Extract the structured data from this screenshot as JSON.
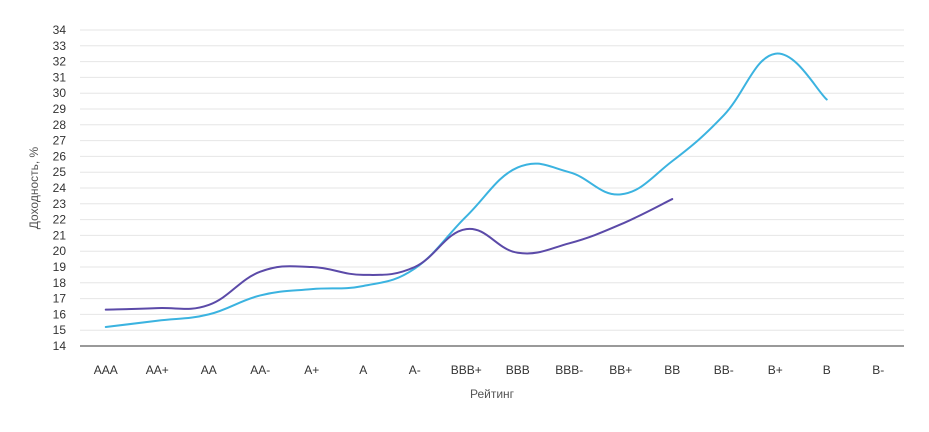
{
  "chart_data": {
    "type": "line",
    "title": "",
    "xlabel": "Рейтинг",
    "ylabel": "Доходность, %",
    "categories": [
      "AAA",
      "AA+",
      "AA",
      "AA-",
      "A+",
      "A",
      "A-",
      "BBB+",
      "BBB",
      "BBB-",
      "BB+",
      "BB",
      "BB-",
      "B+",
      "B",
      "B-"
    ],
    "ylim": [
      14,
      34
    ],
    "yticks": [
      14,
      15,
      16,
      17,
      18,
      19,
      20,
      21,
      22,
      23,
      24,
      25,
      26,
      27,
      28,
      29,
      30,
      31,
      32,
      33,
      34
    ],
    "grid": true,
    "legend": "none",
    "series": [
      {
        "color": "#3bb3e0",
        "values": [
          15.2,
          15.6,
          16.0,
          17.2,
          17.6,
          17.8,
          18.9,
          22.2,
          25.3,
          25.0,
          23.6,
          25.7,
          28.6,
          32.5,
          29.6,
          null
        ]
      },
      {
        "color": "#5b4aa8",
        "values": [
          16.3,
          16.4,
          16.6,
          18.7,
          19.0,
          18.5,
          19.0,
          21.4,
          19.9,
          20.5,
          21.7,
          23.3,
          null,
          null,
          null,
          null
        ]
      }
    ]
  }
}
